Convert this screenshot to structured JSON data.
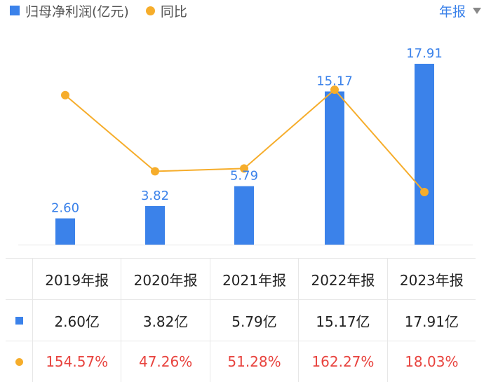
{
  "legend": {
    "bar_label": "归母净利润(亿元)",
    "line_label": "同比"
  },
  "period_selector": {
    "label": "年报"
  },
  "colors": {
    "bar": "#3b82ea",
    "line": "#f6ad2b",
    "bar_label_text": "#3b82ea",
    "yoy_text": "#e8433e"
  },
  "chart_data": {
    "type": "bar",
    "categories": [
      "2019年报",
      "2020年报",
      "2021年报",
      "2022年报",
      "2023年报"
    ],
    "series": [
      {
        "name": "归母净利润(亿元)",
        "type": "bar",
        "values": [
          2.6,
          3.82,
          5.79,
          15.17,
          17.91
        ],
        "labels": [
          "2.60",
          "3.82",
          "5.79",
          "15.17",
          "17.91"
        ]
      },
      {
        "name": "同比",
        "type": "line",
        "values": [
          154.57,
          47.26,
          51.28,
          162.27,
          18.03
        ]
      }
    ],
    "legend_position": "top-left",
    "grid": false
  },
  "table": {
    "headers": [
      "2019年报",
      "2020年报",
      "2021年报",
      "2022年报",
      "2023年报"
    ],
    "profit_row": [
      "2.60亿",
      "3.82亿",
      "5.79亿",
      "15.17亿",
      "17.91亿"
    ],
    "yoy_row": [
      "154.57%",
      "47.26%",
      "51.28%",
      "162.27%",
      "18.03%"
    ]
  }
}
